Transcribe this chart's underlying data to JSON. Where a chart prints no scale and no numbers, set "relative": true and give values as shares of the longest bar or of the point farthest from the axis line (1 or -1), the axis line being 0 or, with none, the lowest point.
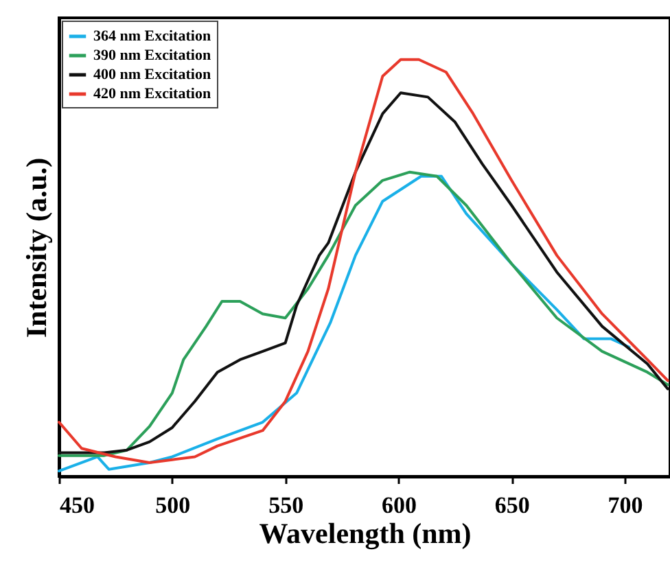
{
  "chart_data": {
    "type": "line",
    "xlabel": "Wavelength (nm)",
    "ylabel": "Intensity (a.u.)",
    "relative": true,
    "xlim": [
      450,
      720
    ],
    "xticks": [
      450,
      500,
      550,
      600,
      650,
      700
    ],
    "legend": "top left",
    "grid": false,
    "marker": "none",
    "line_style": "solid",
    "series": [
      {
        "name": "364 nm Excitation",
        "color": "#1ab0e8",
        "x": [
          450,
          467,
          472,
          490,
          500,
          520,
          540,
          555,
          570,
          581,
          593,
          610,
          619,
          630,
          650,
          670,
          682,
          694,
          702
        ],
        "values": [
          0.013,
          0.047,
          0.017,
          0.033,
          0.047,
          0.09,
          0.13,
          0.2,
          0.37,
          0.53,
          0.66,
          0.72,
          0.72,
          0.63,
          0.51,
          0.4,
          0.33,
          0.33,
          0.31
        ]
      },
      {
        "name": "390 nm Excitation",
        "color": "#2ca05a",
        "x": [
          450,
          470,
          480,
          490,
          500,
          505,
          515,
          522,
          530,
          540,
          550,
          560,
          569,
          581,
          593,
          605,
          617,
          630,
          650,
          670,
          690,
          710,
          719
        ],
        "values": [
          0.05,
          0.05,
          0.063,
          0.12,
          0.2,
          0.28,
          0.36,
          0.42,
          0.42,
          0.39,
          0.38,
          0.45,
          0.53,
          0.65,
          0.71,
          0.73,
          0.72,
          0.65,
          0.51,
          0.38,
          0.3,
          0.25,
          0.22
        ]
      },
      {
        "name": "400 nm Excitation",
        "color": "#111111",
        "x": [
          450,
          470,
          480,
          490,
          500,
          510,
          520,
          530,
          540,
          550,
          555,
          565,
          569,
          581,
          593,
          601,
          613,
          625,
          637,
          650,
          670,
          690,
          710,
          719
        ],
        "values": [
          0.057,
          0.057,
          0.063,
          0.083,
          0.117,
          0.18,
          0.25,
          0.28,
          0.3,
          0.32,
          0.41,
          0.53,
          0.56,
          0.73,
          0.87,
          0.92,
          0.91,
          0.85,
          0.75,
          0.65,
          0.49,
          0.36,
          0.27,
          0.21
        ]
      },
      {
        "name": "420 nm Excitation",
        "color": "#e8392c",
        "x": [
          450,
          460,
          475,
          490,
          500,
          510,
          520,
          540,
          550,
          560,
          569,
          581,
          593,
          601,
          609,
          621,
          633,
          650,
          670,
          690,
          710,
          719
        ],
        "values": [
          0.13,
          0.067,
          0.047,
          0.033,
          0.04,
          0.047,
          0.073,
          0.11,
          0.18,
          0.3,
          0.45,
          0.73,
          0.96,
          1.0,
          1.0,
          0.97,
          0.87,
          0.71,
          0.53,
          0.39,
          0.28,
          0.23
        ]
      }
    ]
  }
}
